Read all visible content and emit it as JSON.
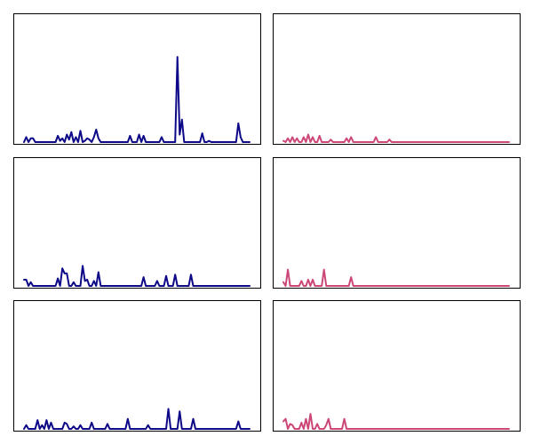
{
  "chart_data": [
    {
      "type": "line",
      "color": "#0d0887",
      "ylim": [
        0,
        100
      ],
      "x": [
        0,
        1,
        2,
        3,
        4,
        5,
        6,
        7,
        8,
        9,
        10,
        11,
        12,
        13,
        14,
        15,
        16,
        17,
        18,
        19,
        20,
        21,
        22,
        23,
        24,
        25,
        26,
        27,
        28,
        29,
        30,
        31,
        32,
        33,
        34,
        35,
        36,
        37,
        38,
        39,
        40,
        41,
        42,
        43,
        44,
        45,
        46,
        47,
        48,
        49,
        50,
        51,
        52,
        53,
        54,
        55,
        56,
        57,
        58,
        59,
        60,
        61,
        62,
        63,
        64,
        65,
        66,
        67,
        68,
        69,
        70,
        71,
        72,
        73,
        74,
        75,
        76,
        77,
        78,
        79,
        80,
        81,
        82,
        83,
        84,
        85,
        86,
        87,
        88,
        89,
        90,
        91,
        92,
        93,
        94,
        95,
        96,
        97,
        98,
        99,
        100
      ],
      "values": [
        0,
        4,
        0,
        3,
        3,
        0,
        0,
        0,
        0,
        0,
        0,
        0,
        0,
        0,
        0,
        5,
        1,
        3,
        0,
        6,
        2,
        8,
        0,
        4,
        0,
        9,
        0,
        1,
        3,
        2,
        0,
        4,
        10,
        3,
        0,
        0,
        0,
        0,
        0,
        0,
        0,
        0,
        0,
        0,
        0,
        0,
        0,
        5,
        0,
        0,
        0,
        6,
        0,
        5,
        0,
        0,
        0,
        0,
        0,
        0,
        0,
        4,
        0,
        0,
        0,
        0,
        0,
        0,
        68,
        6,
        18,
        0,
        0,
        0,
        0,
        0,
        0,
        0,
        0,
        7,
        0,
        0,
        1,
        0,
        0,
        0,
        0,
        0,
        0,
        0,
        0,
        0,
        0,
        0,
        0,
        15,
        4,
        0,
        0,
        0,
        0
      ]
    },
    {
      "type": "line",
      "color": "#cc4778",
      "ylim": [
        0,
        100
      ],
      "x": [
        0,
        1,
        2,
        3,
        4,
        5,
        6,
        7,
        8,
        9,
        10,
        11,
        12,
        13,
        14,
        15,
        16,
        17,
        18,
        19,
        20,
        21,
        22,
        23,
        24,
        25,
        26,
        27,
        28,
        29,
        30,
        31,
        32,
        33,
        34,
        35,
        36,
        37,
        38,
        39,
        40,
        41,
        42,
        43,
        44,
        45,
        46,
        47,
        48,
        49,
        50,
        51,
        52,
        53,
        54,
        55,
        56,
        57,
        58,
        59,
        60,
        61,
        62,
        63,
        64,
        65,
        66,
        67,
        68,
        69,
        70,
        71,
        72,
        73,
        74,
        75,
        76,
        77,
        78,
        79,
        80,
        81,
        82,
        83,
        84,
        85,
        86,
        87,
        88,
        89,
        90,
        91,
        92,
        93,
        94,
        95,
        96,
        97,
        98,
        99,
        100
      ],
      "values": [
        1,
        0,
        3,
        0,
        4,
        0,
        3,
        0,
        0,
        4,
        0,
        6,
        0,
        4,
        0,
        0,
        5,
        0,
        0,
        0,
        0,
        2,
        0,
        0,
        0,
        0,
        0,
        0,
        3,
        0,
        4,
        0,
        0,
        0,
        0,
        0,
        0,
        0,
        0,
        0,
        0,
        4,
        0,
        0,
        0,
        0,
        0,
        2,
        0,
        0,
        0,
        0,
        0,
        0,
        0,
        0,
        0,
        0,
        0,
        0,
        0,
        0,
        0,
        0,
        0,
        0,
        0,
        0,
        0,
        0,
        0,
        0,
        0,
        0,
        0,
        0,
        0,
        0,
        0,
        0,
        0,
        0,
        0,
        0,
        0,
        0,
        0,
        0,
        0,
        0,
        0,
        0,
        0,
        0,
        0,
        0,
        0,
        0,
        0,
        0,
        0
      ]
    },
    {
      "type": "line",
      "color": "#0d0887",
      "ylim": [
        0,
        100
      ],
      "x": [
        0,
        1,
        2,
        3,
        4,
        5,
        6,
        7,
        8,
        9,
        10,
        11,
        12,
        13,
        14,
        15,
        16,
        17,
        18,
        19,
        20,
        21,
        22,
        23,
        24,
        25,
        26,
        27,
        28,
        29,
        30,
        31,
        32,
        33,
        34,
        35,
        36,
        37,
        38,
        39,
        40,
        41,
        42,
        43,
        44,
        45,
        46,
        47,
        48,
        49,
        50,
        51,
        52,
        53,
        54,
        55,
        56,
        57,
        58,
        59,
        60,
        61,
        62,
        63,
        64,
        65,
        66,
        67,
        68,
        69,
        70,
        71,
        72,
        73,
        74,
        75,
        76,
        77,
        78,
        79,
        80,
        81,
        82,
        83,
        84,
        85,
        86,
        87,
        88,
        89,
        90,
        91,
        92,
        93,
        94,
        95,
        96,
        97,
        98,
        99,
        100
      ],
      "values": [
        5,
        5,
        0,
        3,
        0,
        0,
        0,
        0,
        0,
        0,
        0,
        0,
        0,
        0,
        0,
        6,
        0,
        14,
        10,
        10,
        0,
        0,
        3,
        0,
        0,
        0,
        16,
        4,
        5,
        0,
        0,
        4,
        0,
        11,
        0,
        0,
        0,
        0,
        0,
        0,
        0,
        0,
        0,
        0,
        0,
        0,
        0,
        0,
        0,
        0,
        0,
        0,
        0,
        7,
        0,
        0,
        0,
        0,
        0,
        4,
        0,
        0,
        0,
        8,
        0,
        0,
        0,
        9,
        0,
        0,
        0,
        0,
        0,
        0,
        9,
        0,
        0,
        0,
        0,
        0,
        0,
        0,
        0,
        0,
        0,
        0,
        0,
        0,
        0,
        0,
        0,
        0,
        0,
        0,
        0,
        0,
        0,
        0,
        0,
        0,
        0
      ]
    },
    {
      "type": "line",
      "color": "#cc4778",
      "ylim": [
        0,
        100
      ],
      "x": [
        0,
        1,
        2,
        3,
        4,
        5,
        6,
        7,
        8,
        9,
        10,
        11,
        12,
        13,
        14,
        15,
        16,
        17,
        18,
        19,
        20,
        21,
        22,
        23,
        24,
        25,
        26,
        27,
        28,
        29,
        30,
        31,
        32,
        33,
        34,
        35,
        36,
        37,
        38,
        39,
        40,
        41,
        42,
        43,
        44,
        45,
        46,
        47,
        48,
        49,
        50,
        51,
        52,
        53,
        54,
        55,
        56,
        57,
        58,
        59,
        60,
        61,
        62,
        63,
        64,
        65,
        66,
        67,
        68,
        69,
        70,
        71,
        72,
        73,
        74,
        75,
        76,
        77,
        78,
        79,
        80,
        81,
        82,
        83,
        84,
        85,
        86,
        87,
        88,
        89,
        90,
        91,
        92,
        93,
        94,
        95,
        96,
        97,
        98,
        99,
        100
      ],
      "values": [
        3,
        0,
        13,
        0,
        0,
        0,
        0,
        0,
        4,
        0,
        0,
        5,
        0,
        5,
        0,
        0,
        0,
        0,
        13,
        0,
        0,
        0,
        0,
        0,
        0,
        0,
        0,
        0,
        0,
        0,
        7,
        0,
        0,
        0,
        0,
        0,
        0,
        0,
        0,
        0,
        0,
        0,
        0,
        0,
        0,
        0,
        0,
        0,
        0,
        0,
        0,
        0,
        0,
        0,
        0,
        0,
        0,
        0,
        0,
        0,
        0,
        0,
        0,
        0,
        0,
        0,
        0,
        0,
        0,
        0,
        0,
        0,
        0,
        0,
        0,
        0,
        0,
        0,
        0,
        0,
        0,
        0,
        0,
        0,
        0,
        0,
        0,
        0,
        0,
        0,
        0,
        0,
        0,
        0,
        0,
        0,
        0,
        0,
        0,
        0,
        0
      ]
    },
    {
      "type": "line",
      "color": "#0d0887",
      "ylim": [
        0,
        100
      ],
      "x": [
        0,
        1,
        2,
        3,
        4,
        5,
        6,
        7,
        8,
        9,
        10,
        11,
        12,
        13,
        14,
        15,
        16,
        17,
        18,
        19,
        20,
        21,
        22,
        23,
        24,
        25,
        26,
        27,
        28,
        29,
        30,
        31,
        32,
        33,
        34,
        35,
        36,
        37,
        38,
        39,
        40,
        41,
        42,
        43,
        44,
        45,
        46,
        47,
        48,
        49,
        50,
        51,
        52,
        53,
        54,
        55,
        56,
        57,
        58,
        59,
        60,
        61,
        62,
        63,
        64,
        65,
        66,
        67,
        68,
        69,
        70,
        71,
        72,
        73,
        74,
        75,
        76,
        77,
        78,
        79,
        80,
        81,
        82,
        83,
        84,
        85,
        86,
        87,
        88,
        89,
        90,
        91,
        92,
        93,
        94,
        95,
        96,
        97,
        98,
        99,
        100
      ],
      "values": [
        0,
        3,
        0,
        0,
        0,
        0,
        7,
        0,
        3,
        0,
        7,
        0,
        5,
        0,
        0,
        0,
        0,
        0,
        5,
        4,
        0,
        0,
        2,
        0,
        0,
        3,
        0,
        0,
        0,
        0,
        5,
        0,
        0,
        0,
        0,
        0,
        0,
        4,
        0,
        0,
        0,
        0,
        0,
        0,
        0,
        0,
        8,
        0,
        0,
        0,
        0,
        0,
        0,
        0,
        0,
        3,
        0,
        0,
        0,
        0,
        0,
        0,
        0,
        0,
        16,
        0,
        0,
        0,
        0,
        14,
        0,
        0,
        0,
        0,
        0,
        8,
        0,
        0,
        0,
        0,
        0,
        0,
        0,
        0,
        0,
        0,
        0,
        0,
        0,
        0,
        0,
        0,
        0,
        0,
        0,
        6,
        0,
        0,
        0,
        0,
        0
      ]
    },
    {
      "type": "line",
      "color": "#cc4778",
      "ylim": [
        0,
        100
      ],
      "x": [
        0,
        1,
        2,
        3,
        4,
        5,
        6,
        7,
        8,
        9,
        10,
        11,
        12,
        13,
        14,
        15,
        16,
        17,
        18,
        19,
        20,
        21,
        22,
        23,
        24,
        25,
        26,
        27,
        28,
        29,
        30,
        31,
        32,
        33,
        34,
        35,
        36,
        37,
        38,
        39,
        40,
        41,
        42,
        43,
        44,
        45,
        46,
        47,
        48,
        49,
        50,
        51,
        52,
        53,
        54,
        55,
        56,
        57,
        58,
        59,
        60,
        61,
        62,
        63,
        64,
        65,
        66,
        67,
        68,
        69,
        70,
        71,
        72,
        73,
        74,
        75,
        76,
        77,
        78,
        79,
        80,
        81,
        82,
        83,
        84,
        85,
        86,
        87,
        88,
        89,
        90,
        91,
        92,
        93,
        94,
        95,
        96,
        97,
        98,
        99,
        100
      ],
      "values": [
        6,
        8,
        0,
        4,
        3,
        0,
        0,
        0,
        5,
        0,
        8,
        0,
        12,
        0,
        0,
        4,
        0,
        0,
        0,
        3,
        8,
        0,
        0,
        0,
        0,
        0,
        0,
        8,
        0,
        0,
        0,
        0,
        0,
        0,
        0,
        0,
        0,
        0,
        0,
        0,
        0,
        0,
        0,
        0,
        0,
        0,
        0,
        0,
        0,
        0,
        0,
        0,
        0,
        0,
        0,
        0,
        0,
        0,
        0,
        0,
        0,
        0,
        0,
        0,
        0,
        0,
        0,
        0,
        0,
        0,
        0,
        0,
        0,
        0,
        0,
        0,
        0,
        0,
        0,
        0,
        0,
        0,
        0,
        0,
        0,
        0,
        0,
        0,
        0,
        0,
        0,
        0,
        0,
        0,
        0,
        0,
        0,
        0,
        0,
        0,
        0
      ]
    }
  ]
}
